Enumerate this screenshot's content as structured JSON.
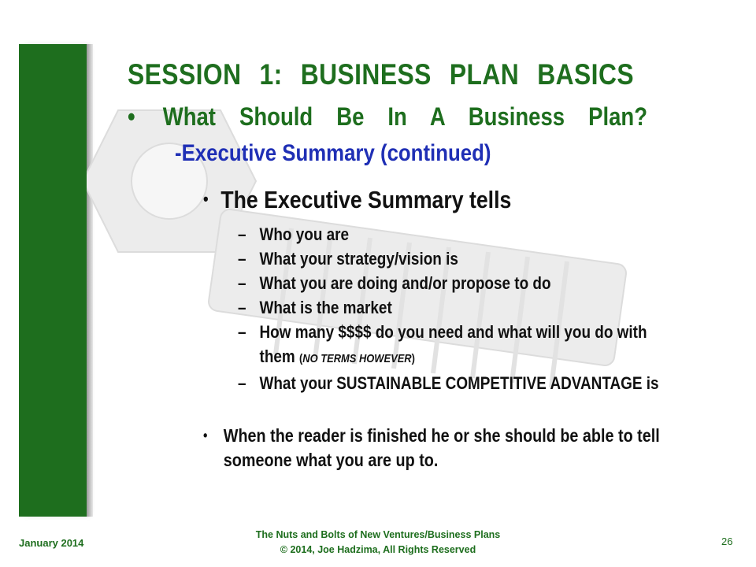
{
  "slide": {
    "title": "SESSION 1:    BUSINESS PLAN BASICS",
    "bullet": "•",
    "bullet_text": "What Should Be In A Business Plan?",
    "subheading": "-Executive Summary (continued)",
    "level2_bullet": "•",
    "level2_heading": "The Executive Summary tells",
    "dash": "–",
    "items": [
      {
        "text": "Who you are"
      },
      {
        "text": "What your strategy/vision is"
      },
      {
        "text": "What you are doing and/or propose to do"
      },
      {
        "text": "What is the market"
      },
      {
        "text": "How many $$$$ do you need and what will you do with them ",
        "paren_open": "(",
        "note": "NO TERMS HOWEVER",
        "paren_close": ")"
      },
      {
        "text": "What your SUSTAINABLE COMPETITIVE ADVANTAGE is"
      }
    ],
    "closing_bullet": "•",
    "closing_text": "When the reader is finished he or she should be able to tell someone what you are up to."
  },
  "footer": {
    "date": "January 2014",
    "course_title": "The Nuts and Bolts of New Ventures/Business Plans",
    "copyright": "© 2014, Joe Hadzima, All Rights Reserved",
    "page_number": "26"
  },
  "colors": {
    "brand_green": "#1e6e1e",
    "subheading_blue": "#1f2fb5",
    "body_text": "#111111"
  }
}
